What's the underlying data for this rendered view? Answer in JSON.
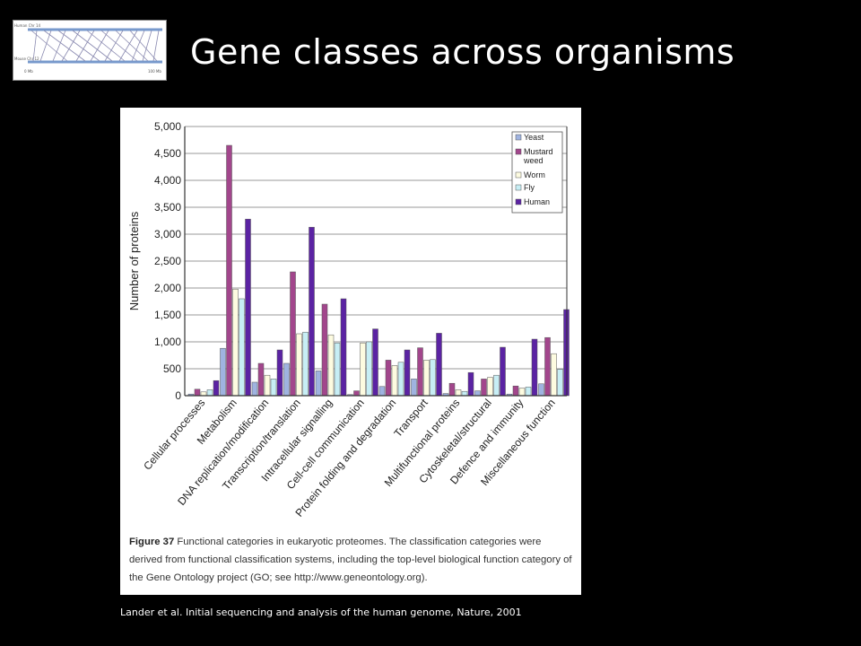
{
  "slide": {
    "title": "Gene classes across organisms",
    "citation": "Lander et al. Initial sequencing and analysis of the human genome, Nature, 2001"
  },
  "logo": {
    "labels": [
      "Human Chr 14",
      "Mouse Chr 12",
      "0 Mb",
      "100 Mb"
    ]
  },
  "figure": {
    "label": "Figure 37",
    "caption": " Functional categories in eukaryotic proteomes. The classification categories were derived from functional classification systems, including the top-level biological function category of the Gene Ontology project (GO; see http://www.geneontology.org)."
  },
  "chart_data": {
    "type": "bar",
    "title": "",
    "xlabel": "",
    "ylabel": "Number of proteins",
    "ylim": [
      0,
      5000
    ],
    "yticks": [
      "0",
      "500",
      "1,000",
      "1,500",
      "2,000",
      "2,500",
      "3,000",
      "3,500",
      "4,000",
      "4,500",
      "5,000"
    ],
    "grid": true,
    "legend_position": "top-right",
    "categories": [
      "Cellular processes",
      "Metabolism",
      "DNA replication/modification",
      "Transcription/translation",
      "Intracellular signalling",
      "Cell-cell communication",
      "Protein folding and degradation",
      "Transport",
      "Multifunctional proteins",
      "Cytoskeletal/structural",
      "Defence and immunity",
      "Miscellaneous function"
    ],
    "series": [
      {
        "name": "Yeast",
        "color": "#9fb3e0",
        "values": [
          30,
          880,
          250,
          600,
          460,
          20,
          170,
          310,
          40,
          90,
          30,
          220
        ]
      },
      {
        "name": "Mustard weed",
        "color": "#a2468c",
        "values": [
          120,
          4650,
          600,
          2300,
          1700,
          90,
          660,
          890,
          230,
          310,
          180,
          1080
        ]
      },
      {
        "name": "Worm",
        "color": "#fdfbe0",
        "values": [
          70,
          1980,
          380,
          1150,
          1130,
          980,
          560,
          660,
          110,
          340,
          140,
          780
        ]
      },
      {
        "name": "Fly",
        "color": "#c7eef5",
        "values": [
          110,
          1800,
          310,
          1180,
          980,
          1000,
          620,
          670,
          80,
          380,
          160,
          490
        ]
      },
      {
        "name": "Human",
        "color": "#5b23a3",
        "values": [
          280,
          3280,
          850,
          3130,
          1800,
          1240,
          850,
          1160,
          430,
          900,
          1050,
          1600
        ]
      }
    ]
  }
}
